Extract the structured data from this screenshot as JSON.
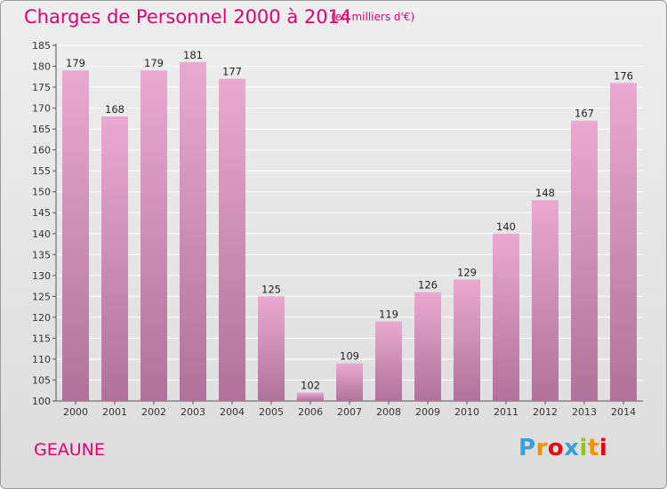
{
  "title": "Charges de Personnel 2000 à 2014",
  "subtitle": "(en milliers d'€)",
  "place": "GEAUNE",
  "logo": {
    "letters": [
      "P",
      "r",
      "o",
      "x",
      "i",
      "t",
      "i"
    ],
    "colors": [
      "#3aa0d8",
      "#f39200",
      "#e30613",
      "#3aa0d8",
      "#95c11f",
      "#f39200",
      "#e30613"
    ]
  },
  "colors": {
    "accent": "#e4006d",
    "bar_top": "#e9a9d0",
    "bar_bottom": "#b0729a",
    "grid": "#ffffff"
  },
  "chart_data": {
    "type": "bar",
    "categories": [
      "2000",
      "2001",
      "2002",
      "2003",
      "2004",
      "2005",
      "2006",
      "2007",
      "2008",
      "2009",
      "2010",
      "2011",
      "2012",
      "2013",
      "2014"
    ],
    "values": [
      179,
      168,
      179,
      181,
      177,
      125,
      102,
      109,
      119,
      126,
      129,
      140,
      148,
      167,
      176
    ],
    "ylim": [
      100,
      185
    ],
    "yticks": [
      100,
      105,
      110,
      115,
      120,
      125,
      130,
      135,
      140,
      145,
      150,
      155,
      160,
      165,
      170,
      175,
      180,
      185
    ],
    "grid": true,
    "legend": "none"
  }
}
